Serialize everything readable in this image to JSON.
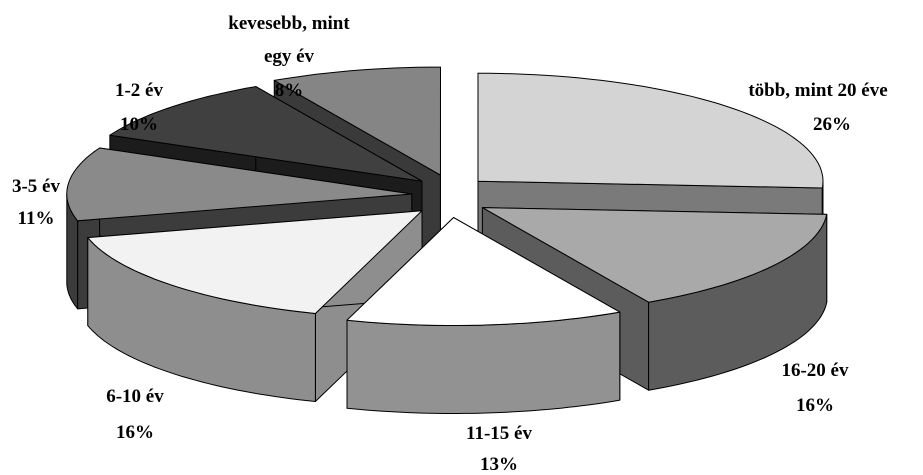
{
  "chart_data": {
    "type": "pie",
    "style": "3d-exploded",
    "slices": [
      {
        "label": "több, mint 20 éve",
        "percent_label": "26%",
        "value": 26,
        "top_color": "#d4d4d4",
        "side_color": "#7a7a7a"
      },
      {
        "label": "16-20 év",
        "percent_label": "16%",
        "value": 16,
        "top_color": "#a9a9a9",
        "side_color": "#5c5c5c"
      },
      {
        "label": "11-15 év",
        "percent_label": "13%",
        "value": 13,
        "top_color": "#ffffff",
        "side_color": "#929292"
      },
      {
        "label": "6-10 év",
        "percent_label": "16%",
        "value": 16,
        "top_color": "#f2f2f2",
        "side_color": "#8e8e8e"
      },
      {
        "label": "3-5 év",
        "percent_label": "11%",
        "value": 11,
        "top_color": "#8a8a8a",
        "side_color": "#3c3c3c"
      },
      {
        "label": "1-2 év",
        "percent_label": "10%",
        "value": 10,
        "top_color": "#404040",
        "side_color": "#1c1c1c"
      },
      {
        "label": "kevesebb, mint egy év",
        "percent_label": "8%",
        "value": 8,
        "top_color": "#858585",
        "side_color": "#3a3a3a"
      }
    ],
    "legend": "none",
    "title": ""
  }
}
